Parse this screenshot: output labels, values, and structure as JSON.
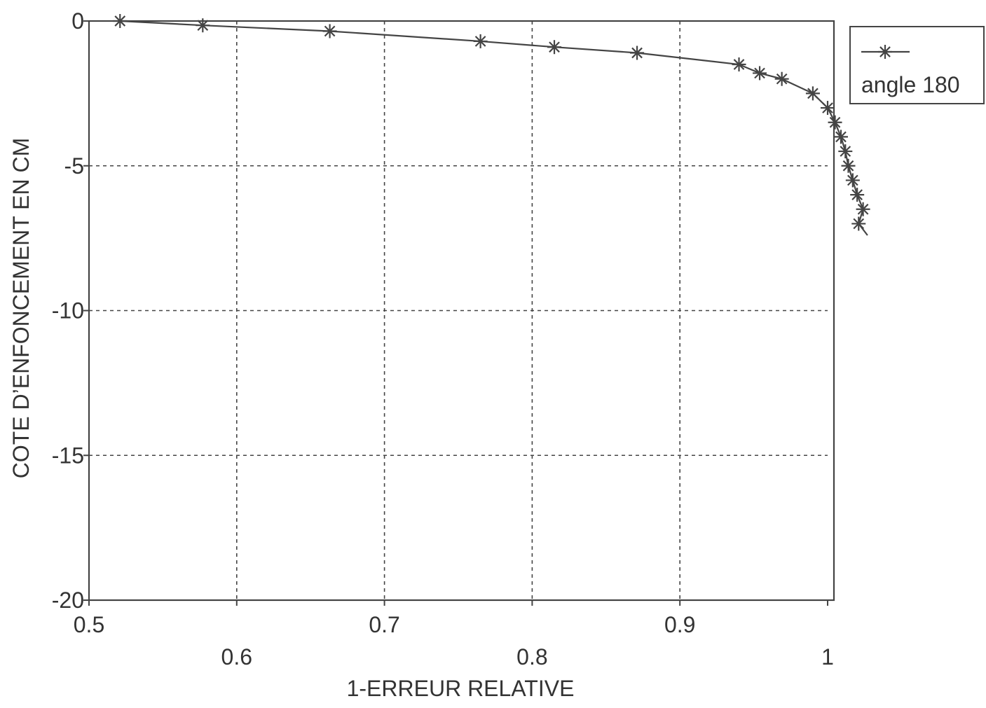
{
  "chart_data": {
    "type": "line",
    "title": "",
    "xlabel": "1-ERREUR RELATIVE",
    "ylabel": "COTE D’ENFONCEMENT EN CM",
    "xlim": [
      0.5,
      1.0
    ],
    "ylim": [
      -20,
      0
    ],
    "x_ticks": [
      {
        "value": 0.5,
        "label": "0.5",
        "row": "upper"
      },
      {
        "value": 0.6,
        "label": "0.6",
        "row": "lower"
      },
      {
        "value": 0.7,
        "label": "0.7",
        "row": "upper"
      },
      {
        "value": 0.8,
        "label": "0.8",
        "row": "lower"
      },
      {
        "value": 0.9,
        "label": "0.9",
        "row": "upper"
      },
      {
        "value": 1.0,
        "label": "1",
        "row": "lower"
      }
    ],
    "y_ticks": [
      {
        "value": 0,
        "label": "0"
      },
      {
        "value": -5,
        "label": "-5"
      },
      {
        "value": -10,
        "label": "-10"
      },
      {
        "value": -15,
        "label": "-15"
      },
      {
        "value": -20,
        "label": "-20"
      }
    ],
    "grid": true,
    "legend_position": "outside top-right",
    "series": [
      {
        "name": "angle 180",
        "marker": "asterisk",
        "color": "#444444",
        "points": [
          {
            "x": 0.521,
            "y": 0.0
          },
          {
            "x": 0.577,
            "y": -0.15
          },
          {
            "x": 0.663,
            "y": -0.35
          },
          {
            "x": 0.765,
            "y": -0.7
          },
          {
            "x": 0.815,
            "y": -0.9
          },
          {
            "x": 0.871,
            "y": -1.1
          },
          {
            "x": 0.94,
            "y": -1.5
          },
          {
            "x": 0.954,
            "y": -1.8
          },
          {
            "x": 0.969,
            "y": -2.0
          },
          {
            "x": 0.99,
            "y": -2.5
          },
          {
            "x": 1.0,
            "y": -3.0
          },
          {
            "x": 1.005,
            "y": -3.5
          },
          {
            "x": 1.009,
            "y": -4.0
          },
          {
            "x": 1.012,
            "y": -4.5
          },
          {
            "x": 1.014,
            "y": -5.0
          },
          {
            "x": 1.017,
            "y": -5.5
          },
          {
            "x": 1.02,
            "y": -6.0
          },
          {
            "x": 1.024,
            "y": -6.5
          },
          {
            "x": 1.021,
            "y": -7.0
          }
        ],
        "line_end": {
          "x": 1.027,
          "y": -7.4
        }
      }
    ]
  }
}
